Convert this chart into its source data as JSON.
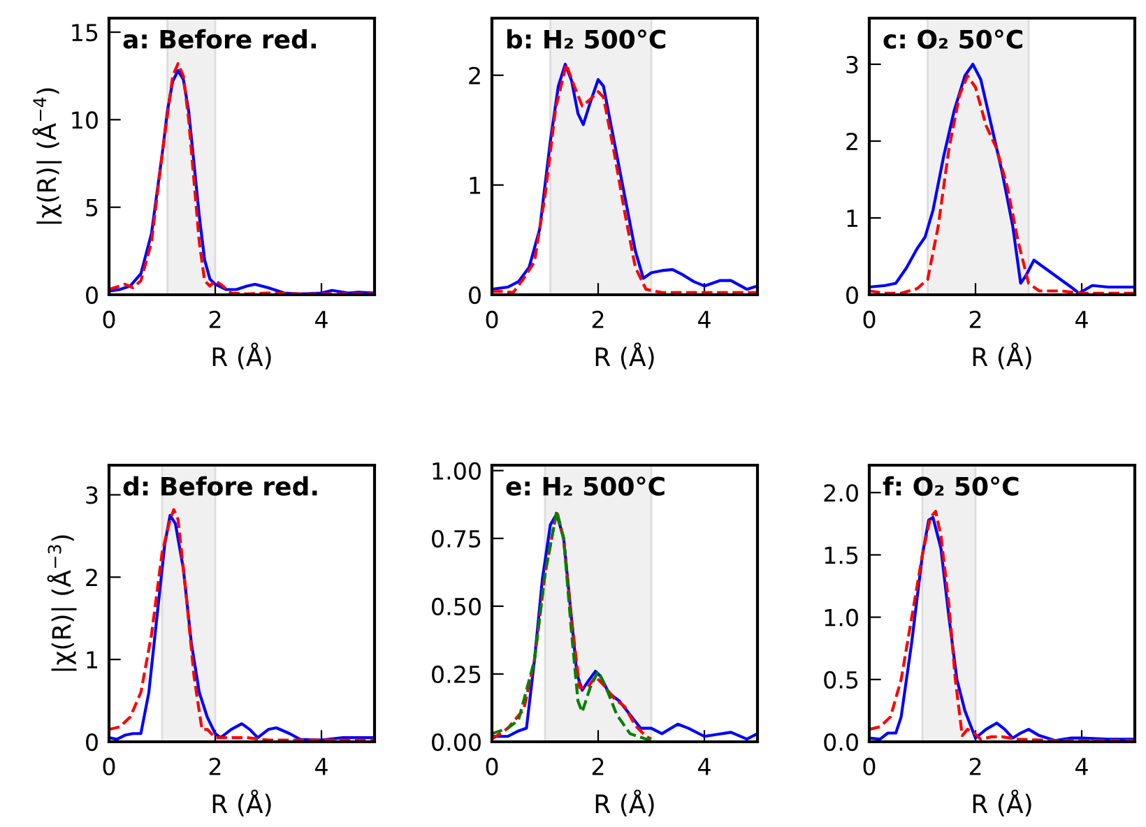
{
  "chart_data": [
    {
      "type": "line",
      "title": "a: Before red.",
      "xlabel": "R (Å)",
      "ylabel": "|χ(R)| (Å$^{−4}$)",
      "xlim": [
        0,
        5
      ],
      "xticks": [
        0,
        2,
        4
      ],
      "ylim": [
        0,
        15.8
      ],
      "yticks": [
        0,
        5,
        10,
        15
      ],
      "bands": [
        {
          "axis": "x",
          "from": 1.1,
          "to": 2.0,
          "color": "#f0f0f0"
        }
      ],
      "series": [
        {
          "color": "#0000ff",
          "line_style": "solid",
          "x": [
            0,
            0.2,
            0.4,
            0.6,
            0.8,
            1.0,
            1.1,
            1.2,
            1.3,
            1.4,
            1.5,
            1.6,
            1.7,
            1.8,
            1.9,
            2.0,
            2.2,
            2.4,
            2.6,
            2.75,
            3.0,
            3.3,
            3.6,
            4.0,
            4.2,
            4.5,
            4.7,
            5.0
          ],
          "values": [
            0.2,
            0.3,
            0.5,
            1.2,
            3.5,
            8.0,
            10.5,
            12.2,
            12.8,
            12.3,
            10.5,
            7.5,
            4.5,
            2.0,
            0.9,
            0.6,
            0.3,
            0.3,
            0.5,
            0.6,
            0.4,
            0.1,
            0.05,
            0.1,
            0.25,
            0.1,
            0.15,
            0.1
          ]
        },
        {
          "color": "#ff0000",
          "line_style": "dashed",
          "x": [
            0,
            0.2,
            0.3,
            0.45,
            0.6,
            0.8,
            1.0,
            1.2,
            1.3,
            1.4,
            1.5,
            1.6,
            1.7,
            1.8,
            1.9,
            2.0,
            2.1,
            2.3,
            2.6,
            3.0,
            3.5,
            4.0,
            5.0
          ],
          "values": [
            0.3,
            0.5,
            0.6,
            0.4,
            0.8,
            3.0,
            8.0,
            12.5,
            13.2,
            12.5,
            10.0,
            6.5,
            3.0,
            0.8,
            0.5,
            0.8,
            0.6,
            0.1,
            0.05,
            0.1,
            0.05,
            0.05,
            0.05
          ]
        }
      ]
    },
    {
      "type": "line",
      "title": "b: H₂ 500°C",
      "xlabel": "R (Å)",
      "xlim": [
        0,
        5
      ],
      "xticks": [
        0,
        2,
        4
      ],
      "ylim": [
        0,
        2.52
      ],
      "yticks": [
        0,
        1,
        2
      ],
      "bands": [
        {
          "axis": "x",
          "from": 1.1,
          "to": 3.0,
          "color": "#f0f0f0"
        }
      ],
      "series": [
        {
          "color": "#0000ff",
          "line_style": "solid",
          "x": [
            0,
            0.3,
            0.5,
            0.7,
            0.9,
            1.1,
            1.25,
            1.38,
            1.5,
            1.62,
            1.72,
            1.85,
            2.0,
            2.1,
            2.3,
            2.5,
            2.7,
            2.85,
            3.0,
            3.2,
            3.4,
            3.6,
            3.8,
            4.0,
            4.3,
            4.5,
            4.8,
            5.0
          ],
          "values": [
            0.05,
            0.07,
            0.12,
            0.25,
            0.6,
            1.4,
            1.9,
            2.1,
            1.95,
            1.65,
            1.55,
            1.75,
            1.96,
            1.9,
            1.4,
            0.9,
            0.4,
            0.15,
            0.2,
            0.22,
            0.23,
            0.18,
            0.12,
            0.08,
            0.13,
            0.13,
            0.05,
            0.08
          ]
        },
        {
          "color": "#ff0000",
          "line_style": "dashed",
          "x": [
            0,
            0.2,
            0.4,
            0.6,
            0.8,
            1.0,
            1.2,
            1.4,
            1.55,
            1.7,
            1.85,
            2.0,
            2.1,
            2.3,
            2.5,
            2.7,
            2.9,
            3.2,
            4.0,
            5.0
          ],
          "values": [
            0.03,
            0.03,
            0.02,
            0.15,
            0.3,
            0.9,
            1.7,
            2.1,
            1.9,
            1.72,
            1.78,
            1.85,
            1.8,
            1.3,
            0.75,
            0.25,
            0.05,
            0.02,
            0.02,
            0.02
          ]
        }
      ]
    },
    {
      "type": "line",
      "title": "c: O₂ 50°C",
      "xlabel": "R (Å)",
      "xlim": [
        0,
        5
      ],
      "xticks": [
        0,
        2,
        4
      ],
      "ylim": [
        0,
        3.6
      ],
      "yticks": [
        0,
        1,
        2,
        3
      ],
      "bands": [
        {
          "axis": "x",
          "from": 1.1,
          "to": 3.0,
          "color": "#f0f0f0"
        }
      ],
      "series": [
        {
          "color": "#0000ff",
          "line_style": "solid",
          "x": [
            0,
            0.3,
            0.5,
            0.7,
            0.9,
            1.05,
            1.2,
            1.4,
            1.6,
            1.8,
            1.95,
            2.1,
            2.3,
            2.5,
            2.7,
            2.85,
            2.95,
            3.1,
            3.3,
            3.6,
            3.8,
            3.95,
            4.2,
            4.5,
            4.8,
            5.0
          ],
          "values": [
            0.1,
            0.12,
            0.15,
            0.35,
            0.6,
            0.75,
            1.1,
            1.8,
            2.4,
            2.85,
            3.0,
            2.8,
            2.2,
            1.6,
            0.9,
            0.15,
            0.25,
            0.45,
            0.35,
            0.2,
            0.1,
            0.02,
            0.12,
            0.1,
            0.1,
            0.1
          ]
        },
        {
          "color": "#ff0000",
          "line_style": "dashed",
          "x": [
            0,
            0.3,
            0.6,
            0.9,
            1.1,
            1.3,
            1.5,
            1.7,
            1.85,
            2.0,
            2.2,
            2.4,
            2.6,
            2.8,
            3.0,
            3.2,
            3.6,
            4.0,
            5.0
          ],
          "values": [
            0.05,
            0.02,
            0.02,
            0.08,
            0.2,
            0.9,
            1.9,
            2.6,
            2.85,
            2.7,
            2.2,
            1.9,
            1.4,
            0.7,
            0.15,
            0.05,
            0.05,
            0.02,
            0.02
          ]
        }
      ]
    },
    {
      "type": "line",
      "title": "d: Before red.",
      "xlabel": "R (Å)",
      "ylabel": "|χ(R)| (Å$^{−3}$)",
      "xlim": [
        0,
        5
      ],
      "xticks": [
        0,
        2,
        4
      ],
      "ylim": [
        0,
        3.36
      ],
      "yticks": [
        0,
        1,
        2,
        3
      ],
      "bands": [
        {
          "axis": "x",
          "from": 1.0,
          "to": 2.0,
          "color": "#f0f0f0"
        }
      ],
      "series": [
        {
          "color": "#0000ff",
          "line_style": "solid",
          "x": [
            0,
            0.15,
            0.3,
            0.45,
            0.6,
            0.75,
            0.9,
            1.05,
            1.15,
            1.25,
            1.4,
            1.55,
            1.7,
            1.85,
            2.0,
            2.1,
            2.3,
            2.5,
            2.65,
            2.8,
            3.0,
            3.15,
            3.4,
            3.6,
            4.0,
            4.4,
            5.0
          ],
          "values": [
            0.05,
            0.03,
            0.08,
            0.1,
            0.1,
            0.6,
            1.5,
            2.4,
            2.75,
            2.65,
            2.1,
            1.2,
            0.6,
            0.3,
            0.1,
            0.05,
            0.15,
            0.22,
            0.15,
            0.05,
            0.15,
            0.17,
            0.1,
            0.03,
            0.02,
            0.05,
            0.05
          ]
        },
        {
          "color": "#ff0000",
          "line_style": "dashed",
          "x": [
            0,
            0.2,
            0.4,
            0.6,
            0.8,
            1.0,
            1.15,
            1.22,
            1.3,
            1.45,
            1.6,
            1.75,
            1.85,
            2.0,
            2.3,
            2.6,
            3.0,
            4.0,
            5.0
          ],
          "values": [
            0.15,
            0.18,
            0.3,
            0.6,
            1.3,
            2.3,
            2.7,
            2.82,
            2.7,
            1.8,
            0.8,
            0.15,
            0.15,
            0.05,
            0.05,
            0.05,
            0.02,
            0.02,
            0.02
          ]
        }
      ]
    },
    {
      "type": "line",
      "title": "e: H₂ 500°C",
      "xlabel": "R (Å)",
      "xlim": [
        0,
        5
      ],
      "xticks": [
        0,
        2,
        4
      ],
      "ylim": [
        0,
        1.02
      ],
      "yticks": [
        {
          "value": 0,
          "label": "0.00"
        },
        {
          "value": 0.25,
          "label": "0.25"
        },
        {
          "value": 0.5,
          "label": "0.50"
        },
        {
          "value": 0.75,
          "label": "0.75"
        },
        {
          "value": 1,
          "label": "1.00"
        }
      ],
      "bands": [
        {
          "axis": "x",
          "from": 1.0,
          "to": 3.0,
          "color": "#f0f0f0"
        }
      ],
      "series": [
        {
          "color": "#0000ff",
          "line_style": "solid",
          "x": [
            0,
            0.3,
            0.5,
            0.65,
            0.8,
            0.95,
            1.1,
            1.22,
            1.35,
            1.5,
            1.6,
            1.7,
            1.8,
            1.95,
            2.05,
            2.2,
            2.4,
            2.6,
            2.8,
            3.0,
            3.2,
            3.5,
            3.7,
            4.0,
            4.5,
            4.8,
            5.0
          ],
          "values": [
            0.02,
            0.02,
            0.04,
            0.05,
            0.3,
            0.6,
            0.8,
            0.84,
            0.75,
            0.45,
            0.25,
            0.19,
            0.22,
            0.26,
            0.24,
            0.18,
            0.15,
            0.1,
            0.05,
            0.05,
            0.03,
            0.065,
            0.05,
            0.02,
            0.035,
            0.01,
            0.03
          ]
        },
        {
          "color": "#ff0000",
          "line_style": "dashed",
          "x": [
            0,
            0.3,
            0.6,
            0.8,
            1.0,
            1.22,
            1.35,
            1.5,
            1.65,
            1.8,
            1.95,
            2.1,
            2.3,
            2.5,
            2.7,
            2.9,
            3.0
          ],
          "values": [
            0.01,
            0.05,
            0.12,
            0.3,
            0.62,
            0.85,
            0.75,
            0.45,
            0.2,
            0.2,
            0.24,
            0.21,
            0.16,
            0.13,
            0.06,
            0.02,
            0.01
          ]
        },
        {
          "color": "#008000",
          "line_style": "dashed",
          "x": [
            0,
            0.3,
            0.5,
            0.8,
            1.0,
            1.22,
            1.35,
            1.5,
            1.62,
            1.7,
            1.85,
            2.0,
            2.15,
            2.35,
            2.6,
            2.9,
            3.0
          ],
          "values": [
            0.03,
            0.05,
            0.08,
            0.3,
            0.62,
            0.85,
            0.75,
            0.4,
            0.15,
            0.11,
            0.2,
            0.26,
            0.2,
            0.1,
            0.03,
            0.01,
            0.01
          ]
        }
      ]
    },
    {
      "type": "line",
      "title": "f: O₂ 50°C",
      "xlabel": "R (Å)",
      "xlim": [
        0,
        5
      ],
      "xticks": [
        0,
        2,
        4
      ],
      "ylim": [
        0,
        2.22
      ],
      "yticks": [
        {
          "value": 0,
          "label": "0.0"
        },
        {
          "value": 0.5,
          "label": "0.5"
        },
        {
          "value": 1,
          "label": "1.0"
        },
        {
          "value": 1.5,
          "label": "1.5"
        },
        {
          "value": 2,
          "label": "2.0"
        }
      ],
      "bands": [
        {
          "axis": "x",
          "from": 1.0,
          "to": 2.0,
          "color": "#f0f0f0"
        }
      ],
      "series": [
        {
          "color": "#0000ff",
          "line_style": "solid",
          "x": [
            0,
            0.2,
            0.35,
            0.5,
            0.6,
            0.8,
            1.0,
            1.12,
            1.2,
            1.35,
            1.5,
            1.65,
            1.8,
            2.0,
            2.2,
            2.4,
            2.55,
            2.7,
            2.85,
            3.0,
            3.2,
            3.5,
            3.8,
            4.0,
            4.5,
            5.0
          ],
          "values": [
            0.03,
            0.02,
            0.07,
            0.07,
            0.2,
            0.8,
            1.5,
            1.78,
            1.8,
            1.55,
            1.0,
            0.5,
            0.25,
            0.03,
            0.1,
            0.15,
            0.1,
            0.03,
            0.07,
            0.1,
            0.05,
            0.01,
            0.03,
            0.03,
            0.02,
            0.02
          ]
        },
        {
          "color": "#ff0000",
          "line_style": "dashed",
          "x": [
            0,
            0.2,
            0.4,
            0.6,
            0.8,
            1.0,
            1.15,
            1.25,
            1.35,
            1.5,
            1.62,
            1.75,
            1.85,
            1.95,
            2.1,
            2.3,
            2.5,
            2.8,
            3.5,
            5.0
          ],
          "values": [
            0.1,
            0.12,
            0.2,
            0.5,
            1.0,
            1.5,
            1.8,
            1.85,
            1.65,
            1.1,
            0.5,
            0.05,
            0.1,
            0.08,
            0.02,
            0.04,
            0.04,
            0.02,
            0.01,
            0.01
          ]
        }
      ]
    }
  ]
}
